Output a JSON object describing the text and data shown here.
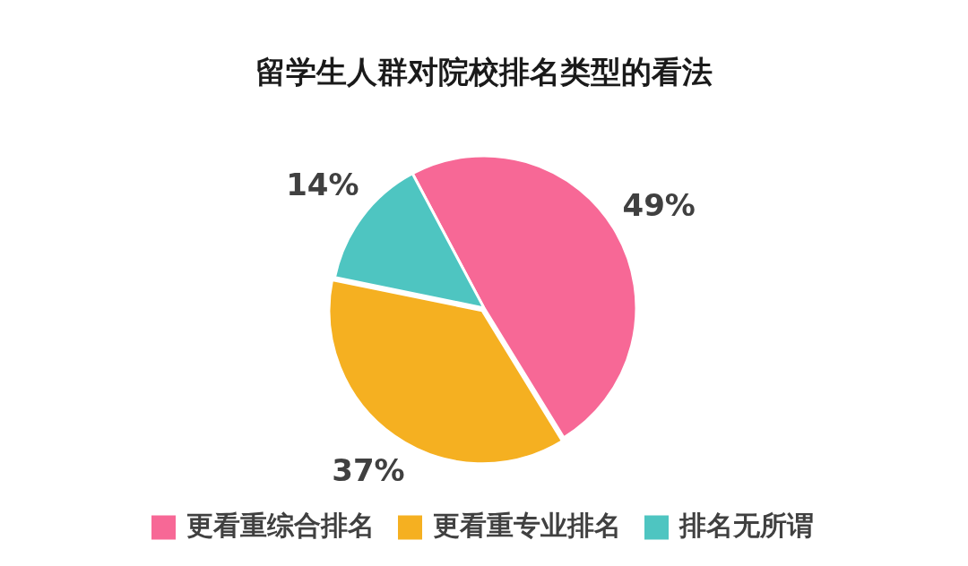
{
  "chart_data": {
    "type": "pie",
    "title": "留学生人群对院校排名类型的看法",
    "categories": [
      "更看重综合排名",
      "更看重专业排名",
      "排名无所谓"
    ],
    "values": [
      49,
      37,
      14
    ],
    "colors": [
      "#f76896",
      "#f5b021",
      "#4ec5c1"
    ],
    "value_labels": [
      "49%",
      "37%",
      "14%"
    ],
    "legend": "bottom"
  }
}
